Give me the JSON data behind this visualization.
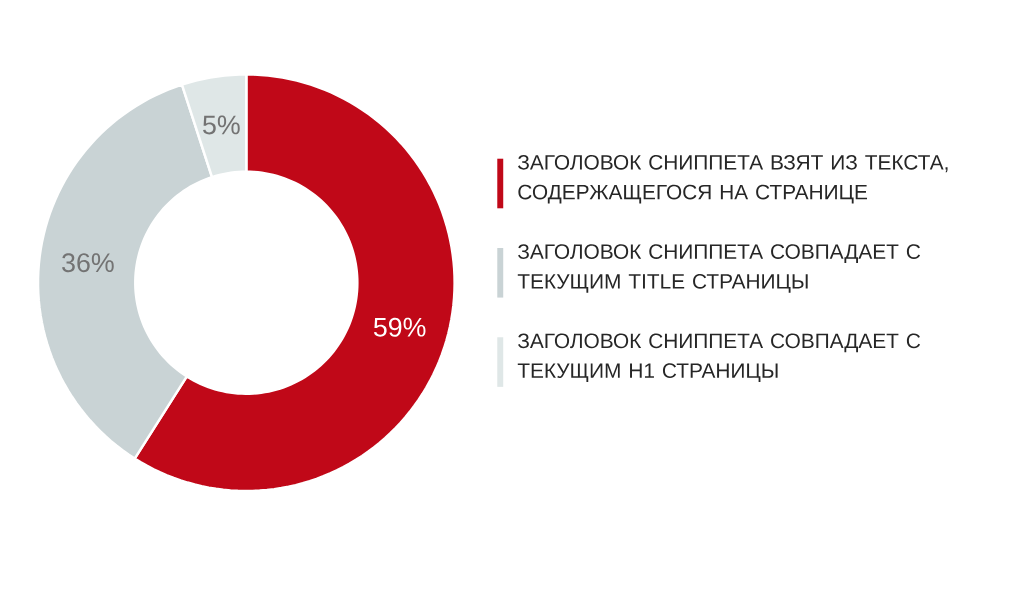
{
  "chart_data": {
    "type": "donut",
    "categories": [
      "ЗАГОЛОВОК СНИППЕТА ВЗЯТ ИЗ ТЕКСТА, СОДЕРЖАЩЕГОСЯ НА СТРАНИЦЕ",
      "ЗАГОЛОВОК СНИППЕТА СОВПАДАЕТ С ТЕКУЩИМ TITLE СТРАНИЦЫ",
      "ЗАГОЛОВОК СНИППЕТА СОВПАДАЕТ С ТЕКУЩИМ H1 СТРАНИЦЫ"
    ],
    "values": [
      59,
      36,
      5
    ],
    "value_labels": [
      "59%",
      "36%",
      "5%"
    ],
    "colors": [
      "#c00818",
      "#c9d3d5",
      "#dfe7e7"
    ],
    "legend": "right"
  }
}
